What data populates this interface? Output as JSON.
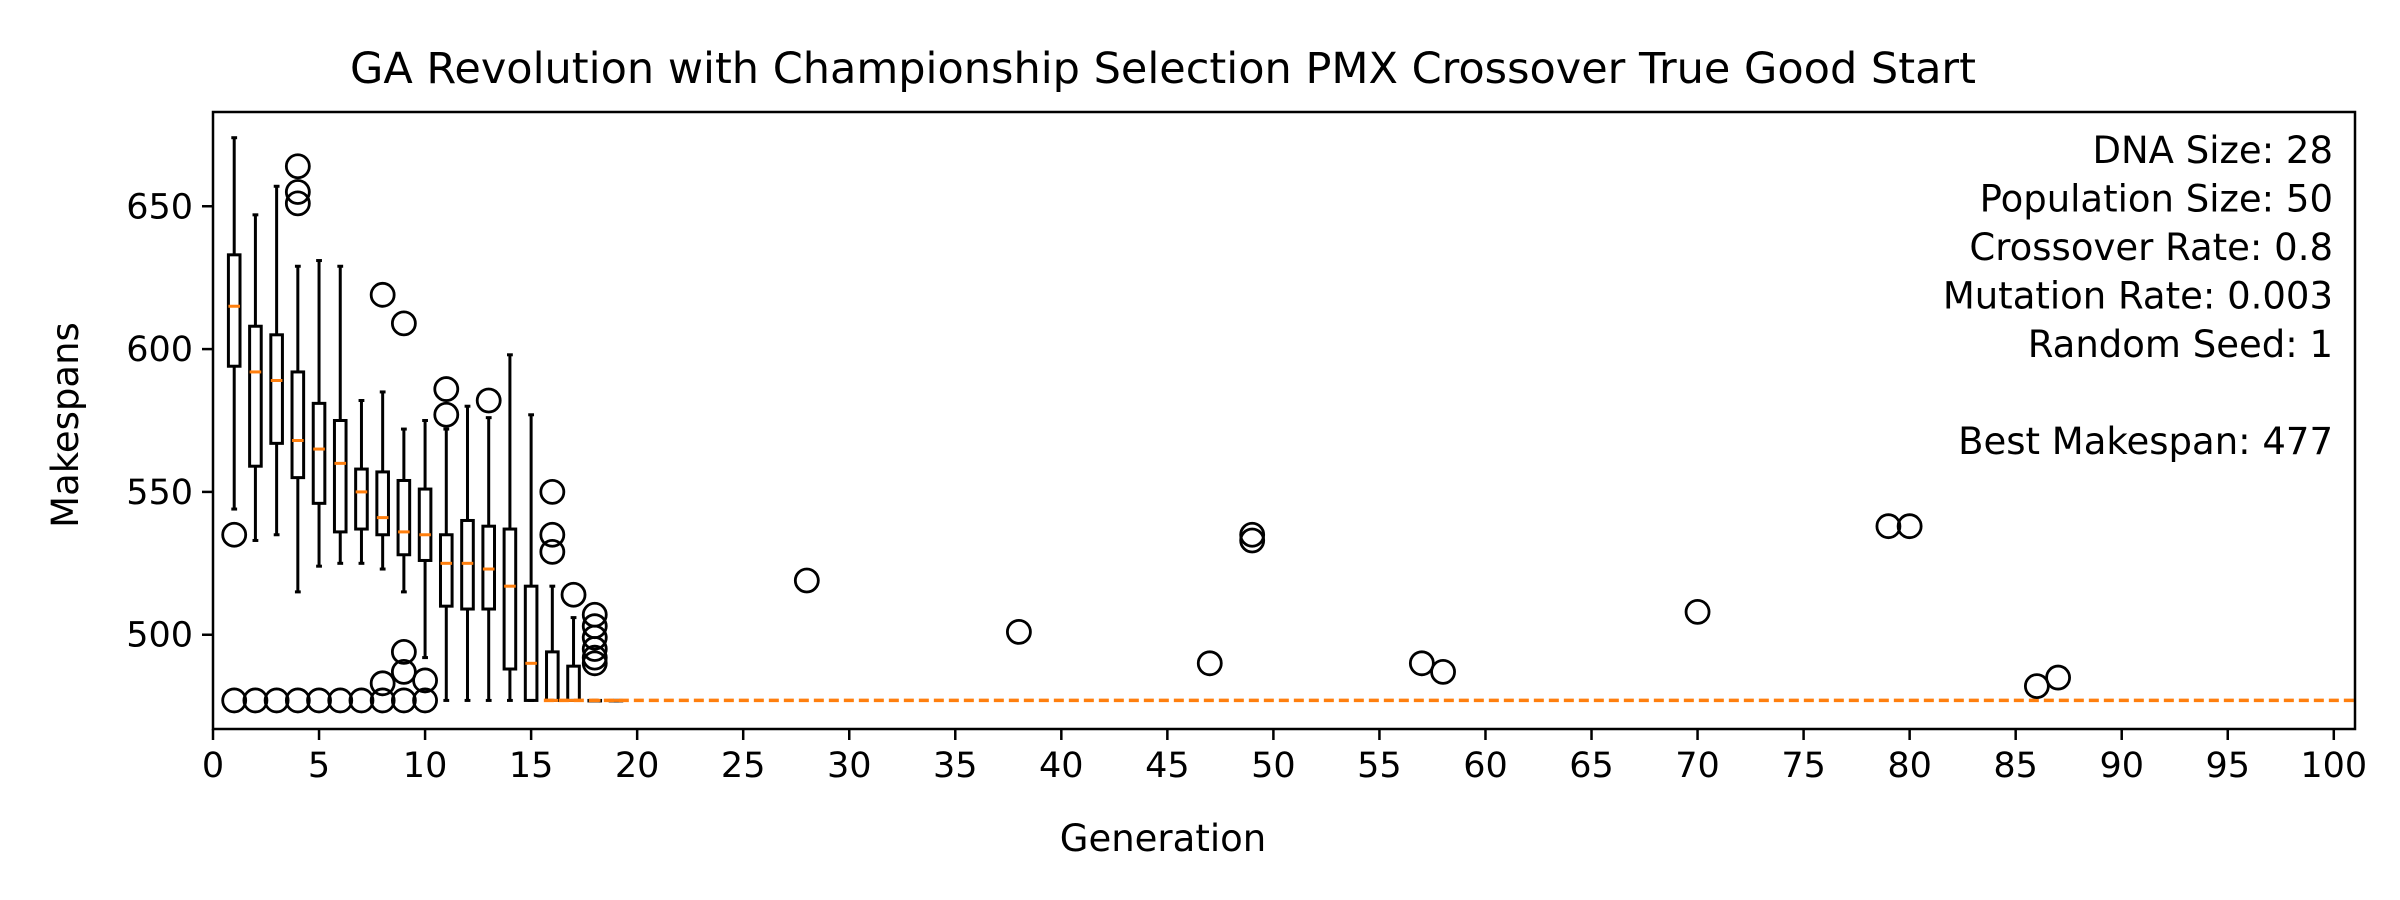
{
  "chart_data": {
    "type": "boxplot",
    "title": "GA Revolution with Championship Selection PMX Crossover True Good Start",
    "xlabel": "Generation",
    "ylabel": "Makespans",
    "xlim": [
      0,
      101
    ],
    "ylim": [
      467,
      683
    ],
    "xticks": [
      0,
      5,
      10,
      15,
      20,
      25,
      30,
      35,
      40,
      45,
      50,
      55,
      60,
      65,
      70,
      75,
      80,
      85,
      90,
      95,
      100
    ],
    "yticks": [
      500,
      550,
      600,
      650
    ],
    "grid": false,
    "info_lines": [
      "DNA Size: 28",
      "Population Size: 50",
      "Crossover Rate: 0.8",
      "Mutation Rate: 0.003",
      "Random Seed: 1",
      "",
      "Best Makespan: 477"
    ],
    "best_makespan": 477,
    "best_line_color": "#ff7f0e",
    "median_color": "#ff7f0e",
    "boxes": [
      {
        "generation": 1,
        "whislo": 544,
        "q1": 594,
        "med": 615,
        "q3": 633,
        "whishi": 674
      },
      {
        "generation": 2,
        "whislo": 533,
        "q1": 559,
        "med": 592,
        "q3": 608,
        "whishi": 647
      },
      {
        "generation": 3,
        "whislo": 535,
        "q1": 567,
        "med": 589,
        "q3": 605,
        "whishi": 657
      },
      {
        "generation": 4,
        "whislo": 515,
        "q1": 555,
        "med": 568,
        "q3": 592,
        "whishi": 629
      },
      {
        "generation": 5,
        "whislo": 524,
        "q1": 546,
        "med": 565,
        "q3": 581,
        "whishi": 631
      },
      {
        "generation": 6,
        "whislo": 525,
        "q1": 536,
        "med": 560,
        "q3": 575,
        "whishi": 629
      },
      {
        "generation": 7,
        "whislo": 525,
        "q1": 537,
        "med": 550,
        "q3": 558,
        "whishi": 582
      },
      {
        "generation": 8,
        "whislo": 523,
        "q1": 535,
        "med": 541,
        "q3": 557,
        "whishi": 585
      },
      {
        "generation": 9,
        "whislo": 515,
        "q1": 528,
        "med": 536,
        "q3": 554,
        "whishi": 572
      },
      {
        "generation": 10,
        "whislo": 492,
        "q1": 526,
        "med": 535,
        "q3": 551,
        "whishi": 575
      },
      {
        "generation": 11,
        "whislo": 477,
        "q1": 510,
        "med": 525,
        "q3": 535,
        "whishi": 572
      },
      {
        "generation": 12,
        "whislo": 477,
        "q1": 509,
        "med": 525,
        "q3": 540,
        "whishi": 580
      },
      {
        "generation": 13,
        "whislo": 477,
        "q1": 509,
        "med": 523,
        "q3": 538,
        "whishi": 576
      },
      {
        "generation": 14,
        "whislo": 477,
        "q1": 488,
        "med": 517,
        "q3": 537,
        "whishi": 598
      },
      {
        "generation": 15,
        "whislo": 477,
        "q1": 477,
        "med": 490,
        "q3": 517,
        "whishi": 577
      },
      {
        "generation": 16,
        "whislo": 477,
        "q1": 477,
        "med": 477,
        "q3": 494,
        "whishi": 517
      },
      {
        "generation": 17,
        "whislo": 477,
        "q1": 477,
        "med": 477,
        "q3": 489,
        "whishi": 506
      },
      {
        "generation": 18,
        "whislo": 477,
        "q1": 477,
        "med": 477,
        "q3": 477,
        "whishi": 477
      },
      {
        "generation": 19,
        "whislo": 477,
        "q1": 477,
        "med": 477,
        "q3": 477,
        "whishi": 477
      }
    ],
    "fliers": [
      {
        "x": 1,
        "y": 535
      },
      {
        "x": 1,
        "y": 477
      },
      {
        "x": 2,
        "y": 477
      },
      {
        "x": 3,
        "y": 477
      },
      {
        "x": 4,
        "y": 664
      },
      {
        "x": 4,
        "y": 655
      },
      {
        "x": 4,
        "y": 651
      },
      {
        "x": 4,
        "y": 477
      },
      {
        "x": 5,
        "y": 477
      },
      {
        "x": 6,
        "y": 477
      },
      {
        "x": 7,
        "y": 477
      },
      {
        "x": 8,
        "y": 619
      },
      {
        "x": 8,
        "y": 483
      },
      {
        "x": 8,
        "y": 477
      },
      {
        "x": 9,
        "y": 609
      },
      {
        "x": 9,
        "y": 494
      },
      {
        "x": 9,
        "y": 487
      },
      {
        "x": 9,
        "y": 477
      },
      {
        "x": 10,
        "y": 484
      },
      {
        "x": 10,
        "y": 477
      },
      {
        "x": 11,
        "y": 586
      },
      {
        "x": 11,
        "y": 577
      },
      {
        "x": 13,
        "y": 582
      },
      {
        "x": 16,
        "y": 550
      },
      {
        "x": 16,
        "y": 535
      },
      {
        "x": 16,
        "y": 529
      },
      {
        "x": 17,
        "y": 514
      },
      {
        "x": 18,
        "y": 507
      },
      {
        "x": 18,
        "y": 503
      },
      {
        "x": 18,
        "y": 499
      },
      {
        "x": 18,
        "y": 495
      },
      {
        "x": 18,
        "y": 492
      },
      {
        "x": 18,
        "y": 490
      },
      {
        "x": 28,
        "y": 519
      },
      {
        "x": 38,
        "y": 501
      },
      {
        "x": 47,
        "y": 490
      },
      {
        "x": 49,
        "y": 535
      },
      {
        "x": 49,
        "y": 533
      },
      {
        "x": 57,
        "y": 490
      },
      {
        "x": 58,
        "y": 487
      },
      {
        "x": 70,
        "y": 508
      },
      {
        "x": 79,
        "y": 538
      },
      {
        "x": 80,
        "y": 538
      },
      {
        "x": 86,
        "y": 482
      },
      {
        "x": 87,
        "y": 485
      }
    ]
  }
}
